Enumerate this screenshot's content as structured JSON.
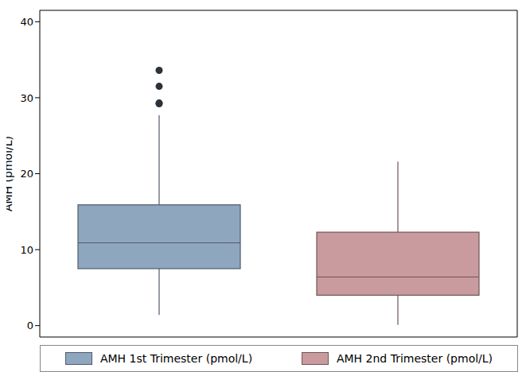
{
  "chart_data": {
    "type": "box",
    "y_label": "AMH (pmol/L)",
    "series": [
      {
        "name": "AMH 1st Trimester (pmol/L)",
        "color": "#8fa6bf",
        "min": 1.4,
        "q1": 7.5,
        "median": 10.9,
        "q3": 15.9,
        "max": 27.7,
        "outliers": [
          29.2,
          29.3,
          31.5,
          33.6
        ]
      },
      {
        "name": "AMH 2nd Trimester (pmol/L)",
        "color": "#c99a9e",
        "min": 0.1,
        "q1": 4.0,
        "median": 6.4,
        "q3": 12.3,
        "max": 21.6,
        "outliers": []
      }
    ],
    "ylim": [
      -1.5,
      41.5
    ],
    "yticks": [
      0,
      10,
      20,
      30,
      40
    ],
    "grid": false,
    "legend": "bottom",
    "tick_labels": "y"
  }
}
